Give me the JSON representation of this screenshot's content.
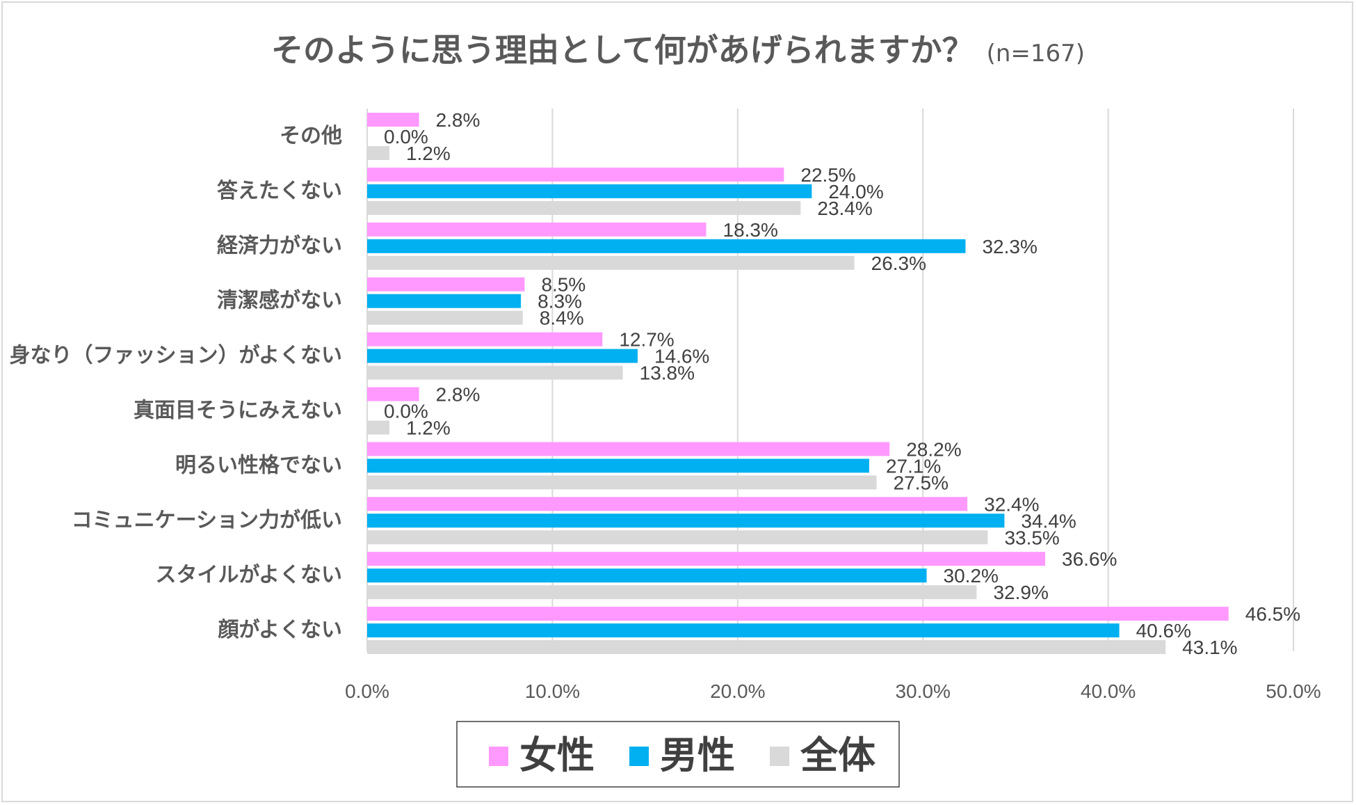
{
  "colors": {
    "female": "#ff99ff",
    "male": "#00b0f0",
    "all": "#d9d9d9",
    "text": "#595959",
    "grid": "#d9d9d9"
  },
  "chart_data": {
    "type": "bar",
    "orientation": "horizontal",
    "title": "そのように思う理由として何があげられますか？",
    "subtitle": "(n=167)",
    "xlim": [
      0,
      50
    ],
    "xticks": [
      "0.0%",
      "10.0%",
      "20.0%",
      "30.0%",
      "40.0%",
      "50.0%"
    ],
    "xtick_values": [
      0,
      10,
      20,
      30,
      40,
      50
    ],
    "grid": true,
    "legend_position": "bottom",
    "categories": [
      "その他",
      "答えたくない",
      "経済力がない",
      "清潔感がない",
      "身なり（ファッション）がよくない",
      "真面目そうにみえない",
      "明るい性格でない",
      "コミュニケーション力が低い",
      "スタイルがよくない",
      "顔がよくない"
    ],
    "series": [
      {
        "name": "女性",
        "color": "#ff99ff",
        "values": [
          2.8,
          22.5,
          18.3,
          8.5,
          12.7,
          2.8,
          28.2,
          32.4,
          36.6,
          46.5
        ],
        "labels": [
          "2.8%",
          "22.5%",
          "18.3%",
          "8.5%",
          "12.7%",
          "2.8%",
          "28.2%",
          "32.4%",
          "36.6%",
          "46.5%"
        ]
      },
      {
        "name": "男性",
        "color": "#00b0f0",
        "values": [
          0.0,
          24.0,
          32.3,
          8.3,
          14.6,
          0.0,
          27.1,
          34.4,
          30.2,
          40.6
        ],
        "labels": [
          "0.0%",
          "24.0%",
          "32.3%",
          "8.3%",
          "14.6%",
          "0.0%",
          "27.1%",
          "34.4%",
          "30.2%",
          "40.6%"
        ]
      },
      {
        "name": "全体",
        "color": "#d9d9d9",
        "values": [
          1.2,
          23.4,
          26.3,
          8.4,
          13.8,
          1.2,
          27.5,
          33.5,
          32.9,
          43.1
        ],
        "labels": [
          "1.2%",
          "23.4%",
          "26.3%",
          "8.4%",
          "13.8%",
          "1.2%",
          "27.5%",
          "33.5%",
          "32.9%",
          "43.1%"
        ]
      }
    ]
  }
}
